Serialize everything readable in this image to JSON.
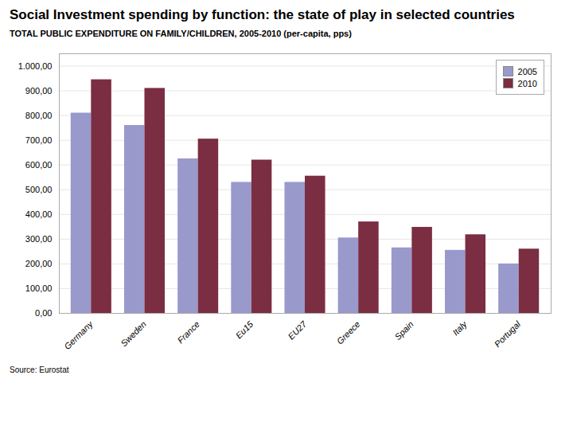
{
  "chart_data": {
    "type": "bar",
    "title": "Social Investment spending by function: the state of play in selected countries",
    "subtitle": "TOTAL PUBLIC EXPENDITURE ON FAMILY/CHILDREN, 2005-2010 (per-capita, pps)",
    "source": "Source: Eurostat",
    "categories": [
      "Germany",
      "Sweden",
      "France",
      "Eu15",
      "EU27",
      "Greece",
      "Spain",
      "Italy",
      "Portugal"
    ],
    "series": [
      {
        "name": "2005",
        "color": "#9999CC",
        "values": [
          810,
          760,
          625,
          530,
          530,
          305,
          265,
          255,
          200
        ]
      },
      {
        "name": "2010",
        "color": "#7B2D42",
        "values": [
          945,
          910,
          705,
          620,
          555,
          370,
          348,
          318,
          260
        ]
      }
    ],
    "ylim": [
      0,
      1050
    ],
    "yticks": [
      {
        "value": 0,
        "label": "0,00"
      },
      {
        "value": 100,
        "label": "100,00"
      },
      {
        "value": 200,
        "label": "200,00"
      },
      {
        "value": 300,
        "label": "300,00"
      },
      {
        "value": 400,
        "label": "400,00"
      },
      {
        "value": 500,
        "label": "500,00"
      },
      {
        "value": 600,
        "label": "600,00"
      },
      {
        "value": 700,
        "label": "700,00"
      },
      {
        "value": 800,
        "label": "800,00"
      },
      {
        "value": 900,
        "label": "900,00"
      },
      {
        "value": 1000,
        "label": "1.000,00"
      }
    ],
    "grid": true,
    "legend": "upper right"
  }
}
